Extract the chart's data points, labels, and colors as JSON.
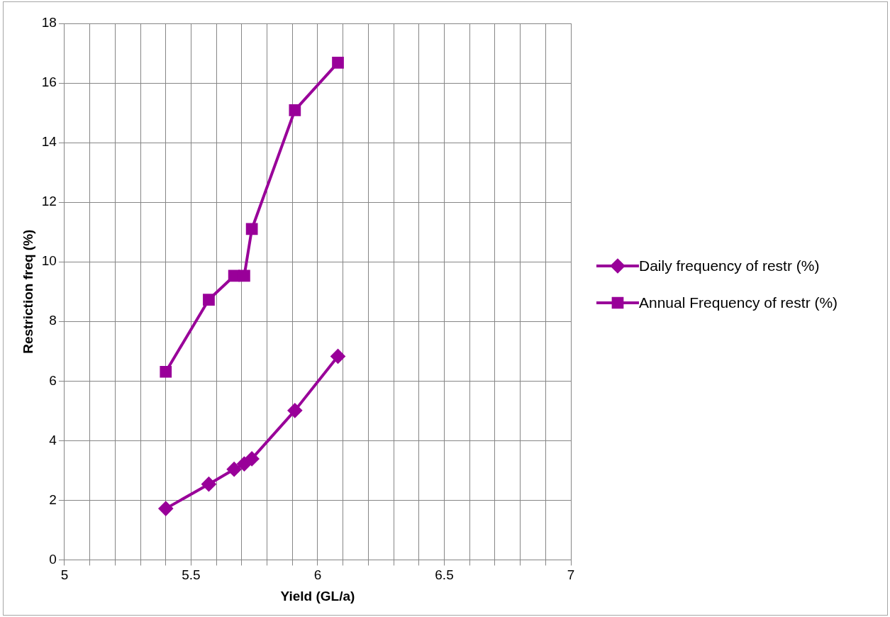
{
  "chart_data": {
    "type": "line",
    "xlabel": "Yield (GL/a)",
    "ylabel": "Restriction freq (%)",
    "xlim": [
      5,
      7
    ],
    "xticks": [
      5,
      {
        "value": 5.1,
        "label": null
      },
      {
        "value": 5.2,
        "label": null
      },
      {
        "value": 5.3,
        "label": null
      },
      {
        "value": 5.4,
        "label": null
      },
      5.5,
      {
        "value": 5.6,
        "label": null
      },
      {
        "value": 5.7,
        "label": null
      },
      {
        "value": 5.8,
        "label": null
      },
      {
        "value": 5.9,
        "label": null
      },
      6,
      {
        "value": 6.1,
        "label": null
      },
      {
        "value": 6.2,
        "label": null
      },
      {
        "value": 6.3,
        "label": null
      },
      {
        "value": 6.4,
        "label": null
      },
      6.5,
      {
        "value": 6.6,
        "label": null
      },
      {
        "value": 6.7,
        "label": null
      },
      {
        "value": 6.8,
        "label": null
      },
      {
        "value": 6.9,
        "label": null
      },
      7
    ],
    "ylim": [
      0,
      18
    ],
    "yticks": [
      0,
      2,
      4,
      6,
      8,
      10,
      12,
      14,
      16,
      18
    ],
    "grid": true,
    "legend": "right",
    "series": [
      {
        "name": "Daily frequency of restr (%)",
        "color": "#990099",
        "marker": "diamond",
        "x": [
          5.4,
          5.57,
          5.67,
          5.71,
          5.74,
          5.91,
          6.08
        ],
        "values": [
          1.72,
          2.54,
          3.04,
          3.22,
          3.39,
          5.01,
          6.83
        ]
      },
      {
        "name": "Annual Frequency of restr (%)",
        "color": "#990099",
        "marker": "square",
        "x": [
          5.4,
          5.57,
          5.67,
          5.71,
          5.74,
          5.91,
          6.08
        ],
        "values": [
          6.31,
          8.73,
          9.53,
          9.53,
          11.1,
          15.09,
          16.68
        ]
      }
    ]
  }
}
